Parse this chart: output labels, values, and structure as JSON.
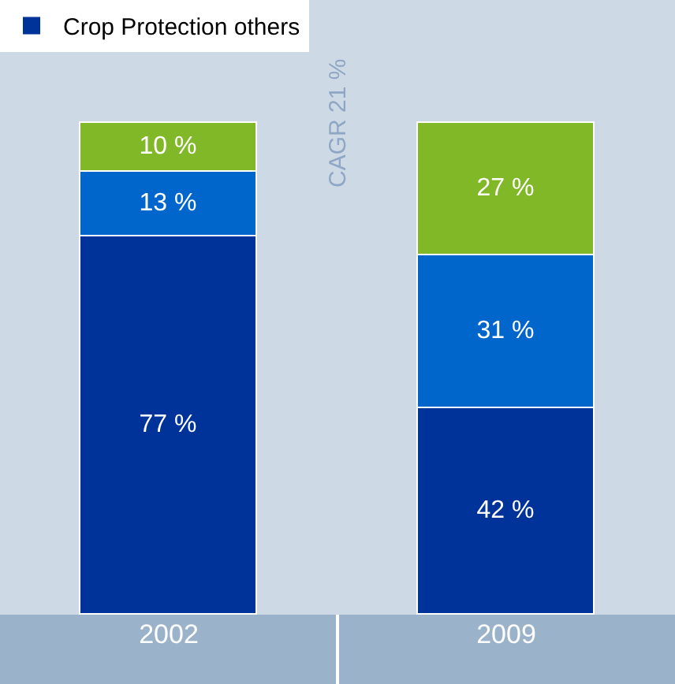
{
  "chart_data": {
    "type": "bar",
    "stacked": true,
    "tick_labels": "x",
    "categories": [
      "2002",
      "2009"
    ],
    "series": [
      {
        "name": "Crop Protection others",
        "color": "#003399",
        "values": [
          77,
          42
        ],
        "value_labels": [
          "77 %",
          "42 %"
        ]
      },
      {
        "color": "#0066cc",
        "values": [
          13,
          31
        ],
        "value_labels": [
          "13 %",
          "31 %"
        ]
      },
      {
        "color": "#80b828",
        "values": [
          10,
          27
        ],
        "value_labels": [
          "10 %",
          "27 %"
        ]
      }
    ],
    "annotations": [
      "CAGR 21 %"
    ],
    "legend": "top left",
    "grid": false
  }
}
